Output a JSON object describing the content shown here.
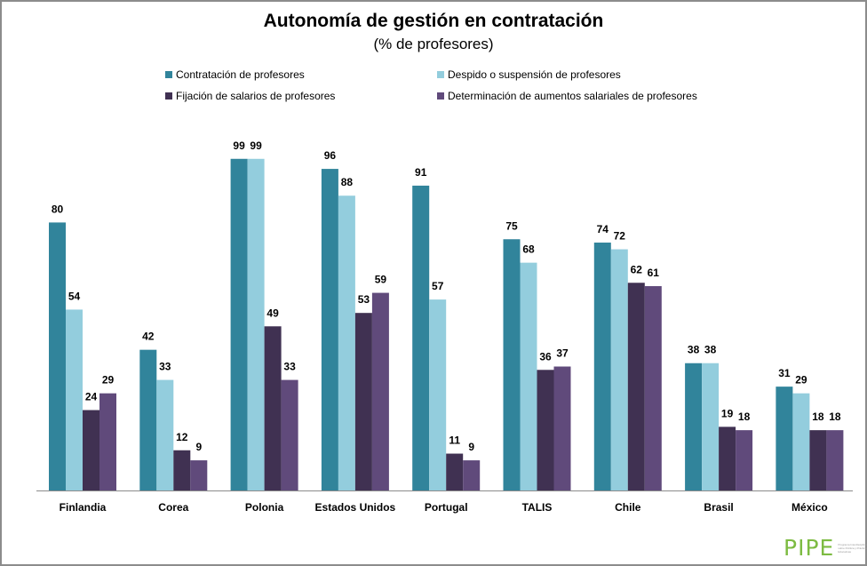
{
  "chart_data": {
    "type": "bar",
    "title": "Autonomía de gestión en contratación",
    "subtitle": "(% de profesores)",
    "xlabel": "",
    "ylabel": "",
    "ylim": [
      0,
      100
    ],
    "grid": false,
    "legend_position": "top",
    "categories": [
      "Finlandia",
      "Corea",
      "Polonia",
      "Estados Unidos",
      "Portugal",
      "TALIS",
      "Chile",
      "Brasil",
      "México"
    ],
    "series": [
      {
        "name": "Contratación de profesores",
        "color": "#31849B",
        "values": [
          80,
          42,
          99,
          96,
          91,
          75,
          74,
          38,
          31
        ]
      },
      {
        "name": "Despido o suspensión de profesores",
        "color": "#93CDDD",
        "values": [
          54,
          33,
          99,
          88,
          57,
          68,
          72,
          38,
          29
        ]
      },
      {
        "name": "Fijación de salarios de profesores",
        "color": "#403152",
        "values": [
          24,
          12,
          49,
          53,
          11,
          36,
          62,
          19,
          18
        ]
      },
      {
        "name": "Determinación de aumentos salariales de profesores",
        "color": "#604A7B",
        "values": [
          29,
          9,
          33,
          59,
          9,
          37,
          61,
          18,
          18
        ]
      }
    ]
  },
  "logo": {
    "mark": "PIPE",
    "text": "Programa Interdisciplinario sobre Política y Prácticas Educativas"
  }
}
